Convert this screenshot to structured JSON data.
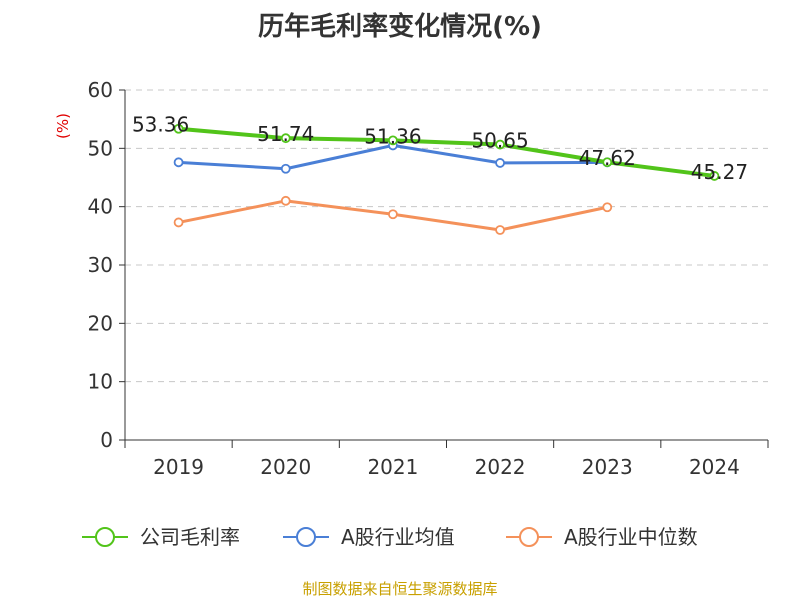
{
  "chart_data": {
    "type": "line",
    "title": "历年毛利率变化情况(%)",
    "ylabel": "(%)",
    "xlabel": "",
    "categories": [
      "2019",
      "2020",
      "2021",
      "2022",
      "2023",
      "2024"
    ],
    "yticks": [
      "0",
      "10",
      "20",
      "30",
      "40",
      "50",
      "60"
    ],
    "ylim": [
      0,
      60
    ],
    "grid": true,
    "legend_position": "bottom",
    "series": [
      {
        "name": "公司毛利率",
        "color": "#52c41a",
        "values": [
          53.36,
          51.74,
          51.36,
          50.65,
          47.62,
          45.27
        ],
        "labels": [
          "53.36",
          "51.74",
          "51.36",
          "50.65",
          "47.62",
          "45.27"
        ]
      },
      {
        "name": "A股行业均值",
        "color": "#4a7fd6",
        "values": [
          47.6,
          46.5,
          50.5,
          47.5,
          47.6,
          null
        ]
      },
      {
        "name": "A股行业中位数",
        "color": "#f4915a",
        "values": [
          37.3,
          41.0,
          38.7,
          36.0,
          39.9,
          null
        ]
      }
    ]
  },
  "footer": "制图数据来自恒生聚源数据库"
}
